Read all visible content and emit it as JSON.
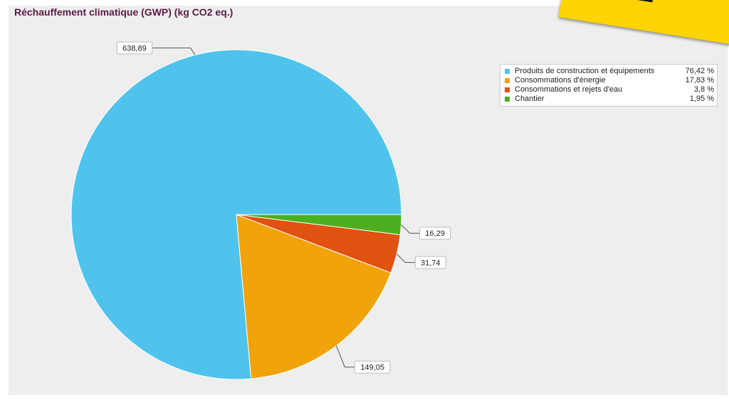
{
  "banner": {
    "text": "eau E"
  },
  "chart_data": {
    "type": "pie",
    "title": "Réchauffement climatique (GWP) (kg CO2 eq.)",
    "slices": [
      {
        "label": "Produits de construction et équipements",
        "value": 638.89,
        "value_label": "638,89",
        "percent": "76,42 %",
        "color": "#4fc3ec"
      },
      {
        "label": "Consommations d'énergie",
        "value": 149.05,
        "value_label": "149,05",
        "percent": "17,83 %",
        "color": "#f0a30a"
      },
      {
        "label": "Consommations et rejets d'eau",
        "value": 31.74,
        "value_label": "31,74",
        "percent": "3,8 %",
        "color": "#e05210"
      },
      {
        "label": "Chantier",
        "value": 16.29,
        "value_label": "16,29",
        "percent": "1,95 %",
        "color": "#4caf1f"
      }
    ],
    "legend_position": "top-right"
  }
}
